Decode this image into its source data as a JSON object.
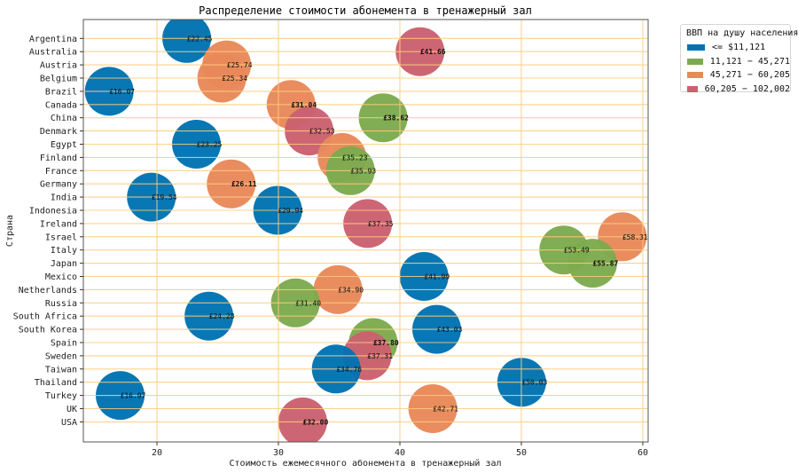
{
  "chart_data": {
    "type": "scatter",
    "title": "Распределение стоимости абонемента в тренажерный зал",
    "xlabel": "Стоимость ежемесячного абонемента в тренажерный зал",
    "ylabel": "Страна",
    "xlim": [
      13.94,
      60.44
    ],
    "xticks": [
      20,
      30,
      40,
      50,
      60
    ],
    "grid": true,
    "legend": {
      "title": "ВВП на душу населения",
      "placement": "outside-top-right",
      "entries": [
        {
          "label": "<= $11,121",
          "color": "#0173B2"
        },
        {
          "label": "11,121 − 45,271",
          "color": "#7DAA4E"
        },
        {
          "label": "45,271 − 60,205",
          "color": "#E8895A"
        },
        {
          "label": "60,205 − 102,002",
          "color": "#CB6170"
        }
      ]
    },
    "categories": [
      "Argentina",
      "Australia",
      "Austria",
      "Belgium",
      "Brazil",
      "Canada",
      "China",
      "Denmark",
      "Egypt",
      "Finland",
      "France",
      "Germany",
      "India",
      "Indonesia",
      "Ireland",
      "Israel",
      "Italy",
      "Japan",
      "Mexico",
      "Netherlands",
      "Russia",
      "South Africa",
      "South Korea",
      "Spain",
      "Sweden",
      "Taiwan",
      "Thailand",
      "Turkey",
      "UK",
      "USA"
    ],
    "points": [
      {
        "country": "Argentina",
        "x": 22.45,
        "label": "£22.45",
        "group": 0
      },
      {
        "country": "Australia",
        "x": 41.66,
        "label": "£41.66",
        "group": 3,
        "bold": true
      },
      {
        "country": "Austria",
        "x": 25.74,
        "label": "£25.74",
        "group": 2
      },
      {
        "country": "Belgium",
        "x": 25.34,
        "label": "£25.34",
        "group": 2
      },
      {
        "country": "Brazil",
        "x": 16.07,
        "label": "£16.07",
        "group": 0
      },
      {
        "country": "Canada",
        "x": 31.04,
        "label": "£31.04",
        "group": 2,
        "bold": true
      },
      {
        "country": "China",
        "x": 38.62,
        "label": "£38.62",
        "group": 1,
        "bold": true
      },
      {
        "country": "Denmark",
        "x": 32.53,
        "label": "£32.53",
        "group": 3
      },
      {
        "country": "Egypt",
        "x": 23.25,
        "label": "£23.25",
        "group": 0
      },
      {
        "country": "Finland",
        "x": 35.23,
        "label": "£35.23",
        "group": 2
      },
      {
        "country": "France",
        "x": 35.93,
        "label": "£35.93",
        "group": 1
      },
      {
        "country": "Germany",
        "x": 26.11,
        "label": "£26.11",
        "group": 2,
        "bold": true
      },
      {
        "country": "India",
        "x": 19.54,
        "label": "£19.54",
        "group": 0
      },
      {
        "country": "Indonesia",
        "x": 29.94,
        "label": "£29.94",
        "group": 0
      },
      {
        "country": "Ireland",
        "x": 37.35,
        "label": "£37.35",
        "group": 3
      },
      {
        "country": "Israel",
        "x": 58.31,
        "label": "£58.31",
        "group": 2
      },
      {
        "country": "Italy",
        "x": 53.49,
        "label": "£53.49",
        "group": 1
      },
      {
        "country": "Japan",
        "x": 55.87,
        "label": "£55.87",
        "group": 1,
        "bold": true
      },
      {
        "country": "Mexico",
        "x": 41.99,
        "label": "£41.99",
        "group": 0
      },
      {
        "country": "Netherlands",
        "x": 34.9,
        "label": "£34.90",
        "group": 2
      },
      {
        "country": "Russia",
        "x": 31.4,
        "label": "£31.40",
        "group": 1
      },
      {
        "country": "South Africa",
        "x": 24.28,
        "label": "£24.28",
        "group": 0
      },
      {
        "country": "South Korea",
        "x": 43.03,
        "label": "£43.03",
        "group": 0
      },
      {
        "country": "Spain",
        "x": 37.8,
        "label": "£37.80",
        "group": 1,
        "bold": true
      },
      {
        "country": "Sweden",
        "x": 37.31,
        "label": "£37.31",
        "group": 3
      },
      {
        "country": "Taiwan",
        "x": 34.76,
        "label": "£34.76",
        "group": 0
      },
      {
        "country": "Thailand",
        "x": 50.03,
        "label": "£50.03",
        "group": 0
      },
      {
        "country": "Turkey",
        "x": 16.97,
        "label": "£16.97",
        "group": 0
      },
      {
        "country": "UK",
        "x": 42.71,
        "label": "£42.71",
        "group": 2
      },
      {
        "country": "USA",
        "x": 32.0,
        "label": "£32.00",
        "group": 3,
        "bold": true
      }
    ]
  }
}
